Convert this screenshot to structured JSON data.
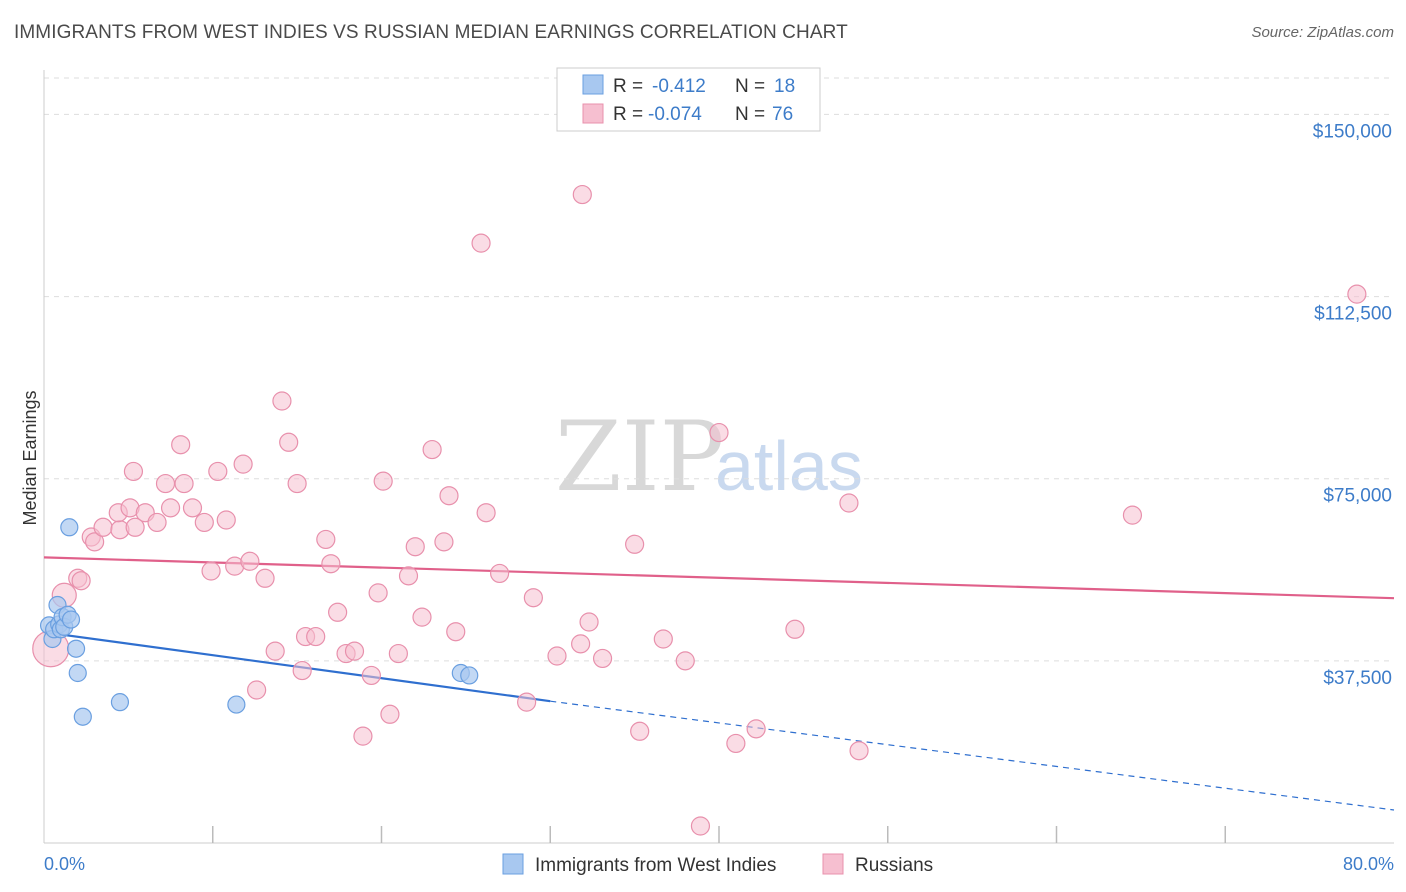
{
  "header": {
    "title": "IMMIGRANTS FROM WEST INDIES VS RUSSIAN MEDIAN EARNINGS CORRELATION CHART",
    "source": "Source: ZipAtlas.com"
  },
  "watermark": {
    "zip": "ZIP",
    "atlas": "atlas"
  },
  "colors": {
    "blue_fill": "#a8c8f0",
    "blue_stroke": "#6a9fe0",
    "blue_line": "#2f6fcf",
    "pink_fill": "#f6bfd0",
    "pink_stroke": "#e890ac",
    "pink_line": "#e0608a",
    "grid": "#dddddd",
    "axis_label": "#3d7cc9"
  },
  "legend": {
    "rows": [
      {
        "r_label": "R = ",
        "r_value": "-0.412",
        "n_label": "N = ",
        "n_value": "18"
      },
      {
        "r_label": "R = ",
        "r_value": "-0.074",
        "n_label": "N = ",
        "n_value": "76"
      }
    ]
  },
  "chart_data": {
    "type": "scatter",
    "xlabel": "",
    "ylabel": "Median Earnings",
    "xlim": [
      0,
      80
    ],
    "ylim": [
      0,
      157500
    ],
    "x_tick_labels": [
      "0.0%",
      "80.0%"
    ],
    "y_ticks": [
      37500,
      75000,
      112500,
      150000
    ],
    "y_tick_labels": [
      "$37,500",
      "$75,000",
      "$112,500",
      "$150,000"
    ],
    "grid": true,
    "legend_placement": "bottom-center",
    "series": [
      {
        "name": "Immigrants from West Indies",
        "color": "#a8c8f0",
        "points": [
          [
            0.3,
            44800
          ],
          [
            0.5,
            42000
          ],
          [
            0.6,
            44000
          ],
          [
            0.8,
            49000
          ],
          [
            0.9,
            45000
          ],
          [
            1.0,
            44000
          ],
          [
            1.1,
            46500
          ],
          [
            1.2,
            44500
          ],
          [
            1.4,
            47000
          ],
          [
            1.5,
            65000
          ],
          [
            1.6,
            46000
          ],
          [
            1.9,
            40000
          ],
          [
            2.0,
            35000
          ],
          [
            2.3,
            26000
          ],
          [
            4.5,
            29000
          ],
          [
            11.4,
            28500
          ],
          [
            24.7,
            35000
          ],
          [
            25.2,
            34500
          ]
        ],
        "trend": {
          "x": [
            0,
            30
          ],
          "y": [
            43400,
            29200
          ],
          "dashed_to": [
            80,
            6800
          ]
        }
      },
      {
        "name": "Russians",
        "color": "#f6bfd0",
        "points": [
          [
            0.4,
            40000
          ],
          [
            1.2,
            51000
          ],
          [
            2.0,
            54500
          ],
          [
            2.2,
            54000
          ],
          [
            2.8,
            63000
          ],
          [
            3.0,
            62000
          ],
          [
            3.5,
            65000
          ],
          [
            4.5,
            64500
          ],
          [
            4.4,
            68000
          ],
          [
            5.1,
            69000
          ],
          [
            5.4,
            65000
          ],
          [
            5.3,
            76500
          ],
          [
            6.0,
            68000
          ],
          [
            6.7,
            66000
          ],
          [
            7.2,
            74000
          ],
          [
            7.5,
            69000
          ],
          [
            8.1,
            82000
          ],
          [
            8.3,
            74000
          ],
          [
            8.8,
            69000
          ],
          [
            9.5,
            66000
          ],
          [
            9.9,
            56000
          ],
          [
            10.3,
            76500
          ],
          [
            10.8,
            66500
          ],
          [
            11.3,
            57000
          ],
          [
            11.8,
            78000
          ],
          [
            12.2,
            58000
          ],
          [
            12.6,
            31500
          ],
          [
            13.1,
            54500
          ],
          [
            13.7,
            39500
          ],
          [
            14.1,
            91000
          ],
          [
            14.5,
            82500
          ],
          [
            15.0,
            74000
          ],
          [
            15.3,
            35500
          ],
          [
            15.5,
            42500
          ],
          [
            16.1,
            42500
          ],
          [
            16.7,
            62500
          ],
          [
            17.0,
            57500
          ],
          [
            17.4,
            47500
          ],
          [
            17.9,
            39000
          ],
          [
            18.4,
            39500
          ],
          [
            18.9,
            22000
          ],
          [
            19.4,
            34500
          ],
          [
            19.8,
            51500
          ],
          [
            20.1,
            74500
          ],
          [
            20.5,
            26500
          ],
          [
            21.0,
            39000
          ],
          [
            21.6,
            55000
          ],
          [
            22.0,
            61000
          ],
          [
            22.4,
            46500
          ],
          [
            23.0,
            81000
          ],
          [
            23.7,
            62000
          ],
          [
            24.0,
            71500
          ],
          [
            24.4,
            43500
          ],
          [
            25.9,
            123500
          ],
          [
            26.2,
            68000
          ],
          [
            27.0,
            55500
          ],
          [
            28.6,
            29000
          ],
          [
            29.0,
            50500
          ],
          [
            30.4,
            38500
          ],
          [
            31.8,
            41000
          ],
          [
            31.9,
            133500
          ],
          [
            32.3,
            45500
          ],
          [
            33.1,
            38000
          ],
          [
            35.0,
            61500
          ],
          [
            35.3,
            23000
          ],
          [
            36.7,
            42000
          ],
          [
            38.0,
            37500
          ],
          [
            38.9,
            3500
          ],
          [
            40.0,
            84500
          ],
          [
            41.0,
            20500
          ],
          [
            42.2,
            23500
          ],
          [
            47.7,
            70000
          ],
          [
            48.3,
            19000
          ],
          [
            64.5,
            67500
          ],
          [
            77.8,
            113000
          ],
          [
            44.5,
            44000
          ]
        ],
        "trend": {
          "x": [
            0,
            80
          ],
          "y": [
            58800,
            50400
          ]
        }
      }
    ]
  }
}
